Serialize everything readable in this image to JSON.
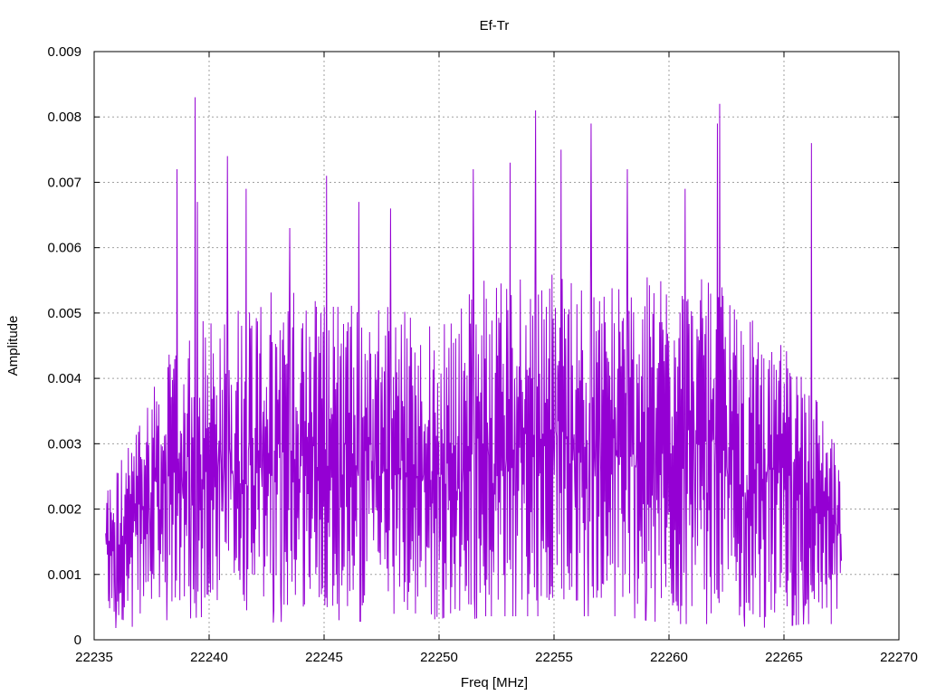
{
  "chart_data": {
    "type": "line",
    "title": "Ef-Tr",
    "xlabel": "Freq [MHz]",
    "ylabel": "Amplitude",
    "xlim": [
      22235,
      22270
    ],
    "ylim": [
      0,
      0.009
    ],
    "xticks": [
      "22235",
      "22240",
      "22245",
      "22250",
      "22255",
      "22260",
      "22265",
      "22270"
    ],
    "yticks": [
      "0",
      "0.001",
      "0.002",
      "0.003",
      "0.004",
      "0.005",
      "0.006",
      "0.007",
      "0.008",
      "0.009"
    ],
    "grid": true,
    "series": [
      {
        "color": "#9400d3",
        "x_start": 22235.5,
        "x_end": 22267.5,
        "peaks": [
          {
            "x": 22238.6,
            "y": 0.0072
          },
          {
            "x": 22239.4,
            "y": 0.0083
          },
          {
            "x": 22239.5,
            "y": 0.0067
          },
          {
            "x": 22240.8,
            "y": 0.0074
          },
          {
            "x": 22241.6,
            "y": 0.0069
          },
          {
            "x": 22243.5,
            "y": 0.0063
          },
          {
            "x": 22245.1,
            "y": 0.0071
          },
          {
            "x": 22246.5,
            "y": 0.0067
          },
          {
            "x": 22247.9,
            "y": 0.0066
          },
          {
            "x": 22251.5,
            "y": 0.0072
          },
          {
            "x": 22253.1,
            "y": 0.0073
          },
          {
            "x": 22254.2,
            "y": 0.0081
          },
          {
            "x": 22255.3,
            "y": 0.0075
          },
          {
            "x": 22256.6,
            "y": 0.0079
          },
          {
            "x": 22258.2,
            "y": 0.0072
          },
          {
            "x": 22260.7,
            "y": 0.0069
          },
          {
            "x": 22262.2,
            "y": 0.0082
          },
          {
            "x": 22262.1,
            "y": 0.0079
          },
          {
            "x": 22266.2,
            "y": 0.0076
          }
        ],
        "envelope": [
          {
            "x": 22235.5,
            "lo": 0.0003,
            "hi": 0.0024
          },
          {
            "x": 22236.5,
            "lo": 0.0003,
            "hi": 0.003
          },
          {
            "x": 22237.5,
            "lo": 0.0005,
            "hi": 0.004
          },
          {
            "x": 22238.5,
            "lo": 0.0005,
            "hi": 0.0045
          },
          {
            "x": 22240.0,
            "lo": 0.0006,
            "hi": 0.005
          },
          {
            "x": 22242.0,
            "lo": 0.0004,
            "hi": 0.0053
          },
          {
            "x": 22244.0,
            "lo": 0.0005,
            "hi": 0.0054
          },
          {
            "x": 22246.0,
            "lo": 0.0005,
            "hi": 0.0053
          },
          {
            "x": 22248.0,
            "lo": 0.0004,
            "hi": 0.0052
          },
          {
            "x": 22250.0,
            "lo": 0.0003,
            "hi": 0.0048
          },
          {
            "x": 22252.0,
            "lo": 0.0006,
            "hi": 0.0056
          },
          {
            "x": 22254.0,
            "lo": 0.0006,
            "hi": 0.0058
          },
          {
            "x": 22256.0,
            "lo": 0.0006,
            "hi": 0.0055
          },
          {
            "x": 22258.0,
            "lo": 0.0006,
            "hi": 0.0055
          },
          {
            "x": 22260.0,
            "lo": 0.0004,
            "hi": 0.0056
          },
          {
            "x": 22262.0,
            "lo": 0.0004,
            "hi": 0.0055
          },
          {
            "x": 22264.0,
            "lo": 0.0003,
            "hi": 0.0048
          },
          {
            "x": 22266.0,
            "lo": 0.0004,
            "hi": 0.0042
          },
          {
            "x": 22267.5,
            "lo": 0.0004,
            "hi": 0.0028
          }
        ]
      }
    ]
  }
}
